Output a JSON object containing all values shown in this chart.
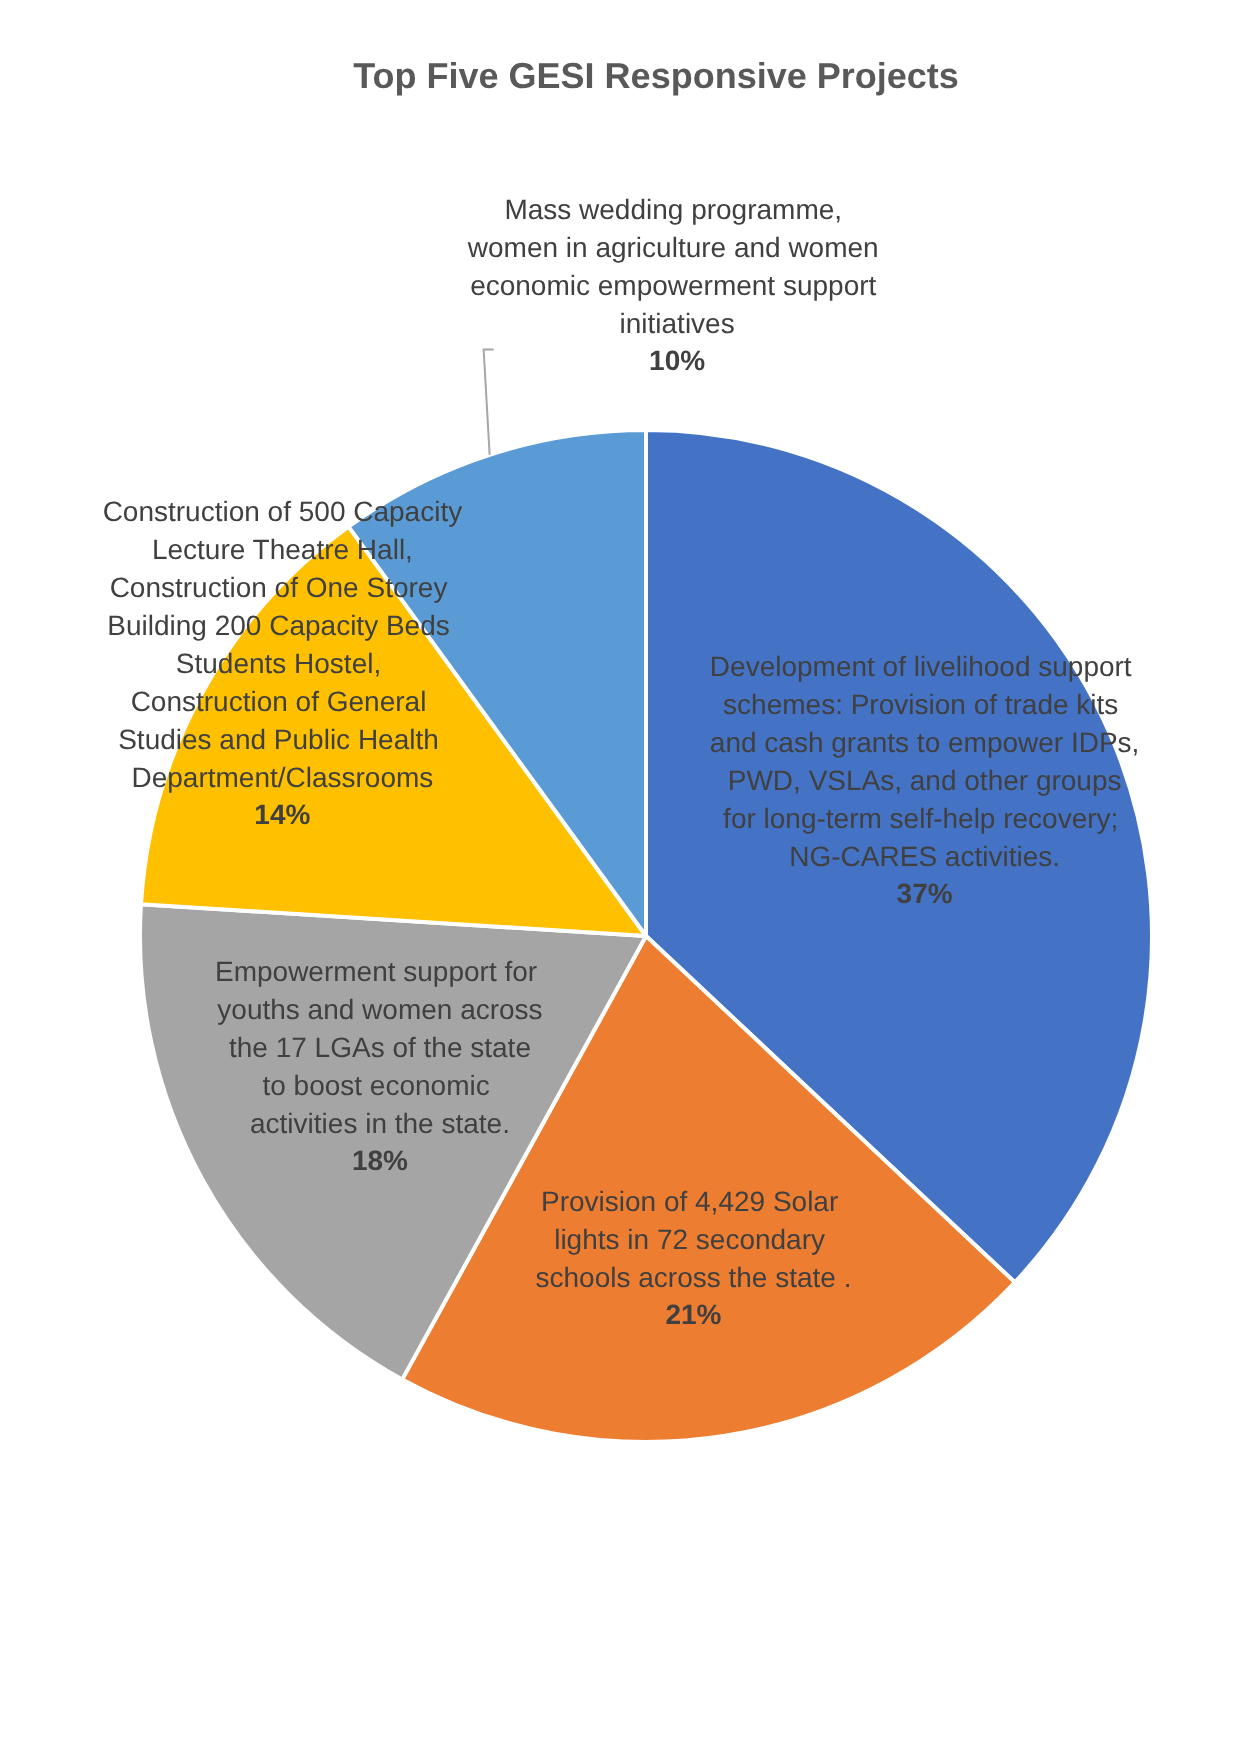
{
  "chart_data": {
    "type": "pie",
    "title": "Top Five GESI Responsive Projects",
    "categories": [
      "Development of livelihood support schemes: Provision of trade kits and cash grants to empower IDPs, PWD, VSLAs, and other groups for long-term self-help recovery; NG-CARES activities.",
      "Provision of 4,429 Solar lights in 72 secondary schools across the state .",
      "Empowerment support for youths and women across the 17 LGAs of the state to boost economic activities in the state.",
      "Construction of 500 Capacity Lecture Theatre Hall, Construction of One Storey Building 200 Capacity Beds Students Hostel, Construction of General Studies and Public Health Department/Classrooms",
      "Mass wedding programme, women in agriculture and women economic empowerment support initiatives"
    ],
    "values": [
      37,
      21,
      18,
      14,
      10
    ],
    "value_labels": [
      "37%",
      "21%",
      "18%",
      "14%",
      "10%"
    ],
    "colors": [
      "#4472c4",
      "#ed7d31",
      "#a5a5a5",
      "#ffc000",
      "#5b9bd5"
    ],
    "legend": false
  }
}
